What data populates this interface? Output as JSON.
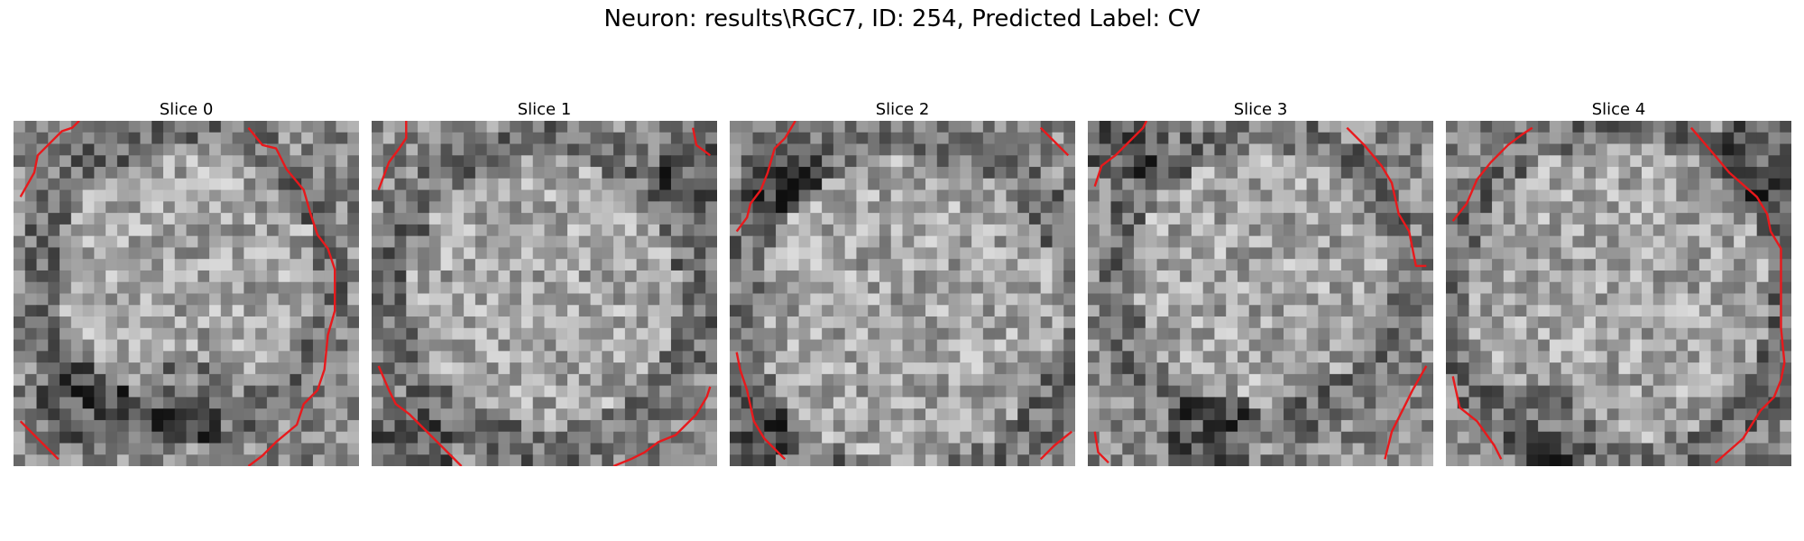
{
  "figure": {
    "title": "Neuron: results\\RGC7, ID: 254, Predicted Label: CV"
  },
  "slices": [
    {
      "title": "Slice 0"
    },
    {
      "title": "Slice 1"
    },
    {
      "title": "Slice 2"
    },
    {
      "title": "Slice 3"
    },
    {
      "title": "Slice 4"
    }
  ],
  "colors": {
    "contour": "#e8191c",
    "background": "#ffffff"
  }
}
